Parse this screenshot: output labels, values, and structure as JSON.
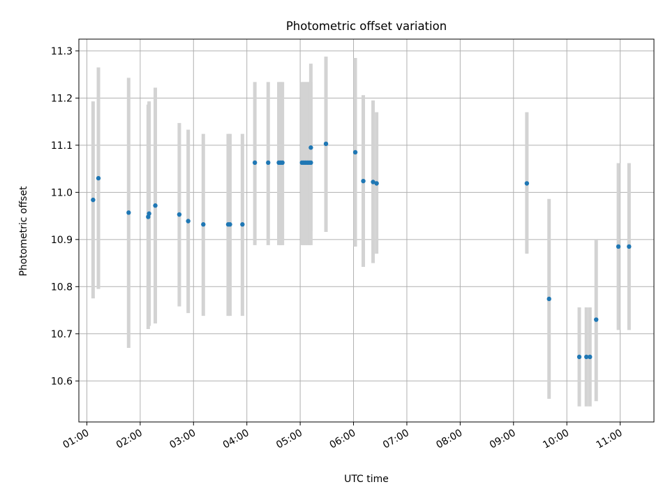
{
  "chart_data": {
    "type": "scatter",
    "title": "Photometric offset variation",
    "xlabel": "UTC time",
    "ylabel": "Photometric offset",
    "xlim": [
      "00:51",
      "11:38"
    ],
    "ylim": [
      10.513,
      11.325
    ],
    "xticks": [
      "01:00",
      "02:00",
      "03:00",
      "04:00",
      "05:00",
      "06:00",
      "07:00",
      "08:00",
      "09:00",
      "10:00",
      "11:00"
    ],
    "yticks": [
      10.6,
      10.7,
      10.8,
      10.9,
      11.0,
      11.1,
      11.2,
      11.3
    ],
    "grid": true,
    "colors": {
      "points": "#1f77b4",
      "errorbars": "#d3d3d3",
      "grid": "#b0b0b0"
    },
    "series": [
      {
        "points": [
          {
            "t": "01:07",
            "y": 10.984,
            "lo": 10.775,
            "hi": 11.193
          },
          {
            "t": "01:13",
            "y": 11.03,
            "lo": 10.795,
            "hi": 11.265
          },
          {
            "t": "01:47",
            "y": 10.957,
            "lo": 10.67,
            "hi": 11.243
          },
          {
            "t": "02:09",
            "y": 10.948,
            "lo": 10.71,
            "hi": 11.186
          },
          {
            "t": "02:10",
            "y": 10.955,
            "lo": 10.717,
            "hi": 11.193
          },
          {
            "t": "02:17",
            "y": 10.972,
            "lo": 10.722,
            "hi": 11.222
          },
          {
            "t": "02:44",
            "y": 10.953,
            "lo": 10.758,
            "hi": 11.147
          },
          {
            "t": "02:54",
            "y": 10.939,
            "lo": 10.744,
            "hi": 11.133
          },
          {
            "t": "03:11",
            "y": 10.932,
            "lo": 10.738,
            "hi": 11.124
          },
          {
            "t": "03:39",
            "y": 10.932,
            "lo": 10.738,
            "hi": 11.124
          },
          {
            "t": "03:41",
            "y": 10.932,
            "lo": 10.738,
            "hi": 11.124
          },
          {
            "t": "03:55",
            "y": 10.932,
            "lo": 10.738,
            "hi": 11.124
          },
          {
            "t": "04:09",
            "y": 11.063,
            "lo": 10.888,
            "hi": 11.234
          },
          {
            "t": "04:24",
            "y": 11.063,
            "lo": 10.888,
            "hi": 11.234
          },
          {
            "t": "04:36",
            "y": 11.063,
            "lo": 10.888,
            "hi": 11.234
          },
          {
            "t": "04:38",
            "y": 11.063,
            "lo": 10.888,
            "hi": 11.234
          },
          {
            "t": "04:40",
            "y": 11.063,
            "lo": 10.888,
            "hi": 11.234
          },
          {
            "t": "05:02",
            "y": 11.063,
            "lo": 10.888,
            "hi": 11.234
          },
          {
            "t": "05:04",
            "y": 11.063,
            "lo": 10.888,
            "hi": 11.234
          },
          {
            "t": "05:06",
            "y": 11.063,
            "lo": 10.888,
            "hi": 11.234
          },
          {
            "t": "05:08",
            "y": 11.063,
            "lo": 10.888,
            "hi": 11.234
          },
          {
            "t": "05:10",
            "y": 11.063,
            "lo": 10.888,
            "hi": 11.234
          },
          {
            "t": "05:12",
            "y": 11.063,
            "lo": 10.888,
            "hi": 11.234
          },
          {
            "t": "05:12",
            "y": 11.095,
            "lo": 10.918,
            "hi": 11.273
          },
          {
            "t": "05:29",
            "y": 11.103,
            "lo": 10.916,
            "hi": 11.288
          },
          {
            "t": "06:02",
            "y": 11.085,
            "lo": 10.885,
            "hi": 11.285
          },
          {
            "t": "06:11",
            "y": 11.024,
            "lo": 10.842,
            "hi": 11.206
          },
          {
            "t": "06:22",
            "y": 11.022,
            "lo": 10.85,
            "hi": 11.195
          },
          {
            "t": "06:26",
            "y": 11.019,
            "lo": 10.87,
            "hi": 11.17
          },
          {
            "t": "09:15",
            "y": 11.019,
            "lo": 10.87,
            "hi": 11.17
          },
          {
            "t": "09:40",
            "y": 10.774,
            "lo": 10.562,
            "hi": 10.986
          },
          {
            "t": "10:14",
            "y": 10.651,
            "lo": 10.546,
            "hi": 10.756
          },
          {
            "t": "10:22",
            "y": 10.651,
            "lo": 10.546,
            "hi": 10.756
          },
          {
            "t": "10:26",
            "y": 10.651,
            "lo": 10.546,
            "hi": 10.756
          },
          {
            "t": "10:33",
            "y": 10.73,
            "lo": 10.557,
            "hi": 10.9
          },
          {
            "t": "10:58",
            "y": 10.885,
            "lo": 10.708,
            "hi": 11.062
          },
          {
            "t": "11:10",
            "y": 10.885,
            "lo": 10.708,
            "hi": 11.062
          }
        ]
      }
    ]
  }
}
